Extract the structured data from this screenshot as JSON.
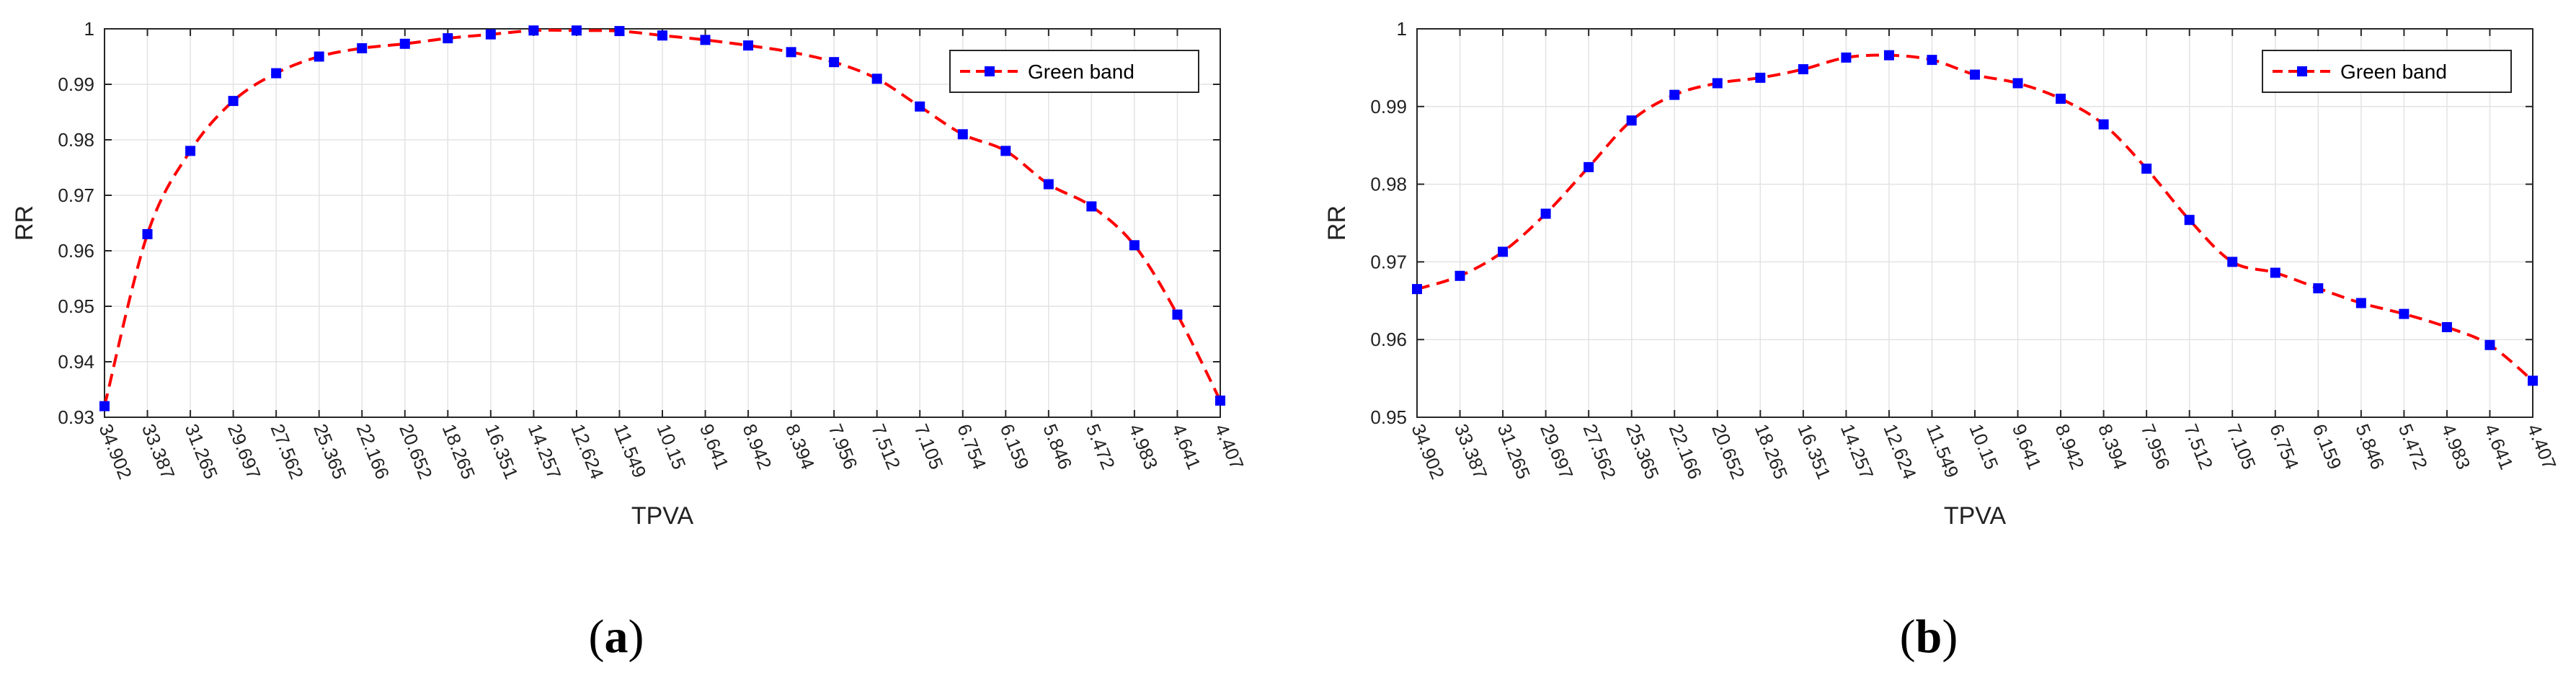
{
  "chart_data": [
    {
      "type": "line",
      "panel_label": "a",
      "xlabel": "TPVA",
      "ylabel": "RR",
      "ylim": [
        0.93,
        1.0
      ],
      "yticks": [
        0.93,
        0.94,
        0.95,
        0.96,
        0.97,
        0.98,
        0.99,
        1
      ],
      "ytick_labels": [
        "0.93",
        "0.94",
        "0.95",
        "0.96",
        "0.97",
        "0.98",
        "0.99",
        "1"
      ],
      "grid": true,
      "legend_position": "top-right",
      "categories": [
        "34.902",
        "33.387",
        "31.265",
        "29.697",
        "27.562",
        "25.365",
        "22.166",
        "20.652",
        "18.265",
        "16.351",
        "14.257",
        "12.624",
        "11.549",
        "10.15",
        "9.641",
        "8.942",
        "8.394",
        "7.956",
        "7.512",
        "7.105",
        "6.754",
        "6.159",
        "5.846",
        "5.472",
        "4.983",
        "4.641",
        "4.407"
      ],
      "series": [
        {
          "name": "Green band",
          "color": "#ff0000",
          "marker_color": "#0000ff",
          "values": [
            0.932,
            0.963,
            0.978,
            0.987,
            0.992,
            0.995,
            0.9965,
            0.9973,
            0.9983,
            0.999,
            0.9997,
            0.9997,
            0.9996,
            0.9988,
            0.998,
            0.997,
            0.9958,
            0.994,
            0.991,
            0.986,
            0.981,
            0.978,
            0.972,
            0.968,
            0.961,
            0.9485,
            0.933
          ]
        }
      ]
    },
    {
      "type": "line",
      "panel_label": "b",
      "xlabel": "TPVA",
      "ylabel": "RR",
      "ylim": [
        0.95,
        1.0
      ],
      "yticks": [
        0.95,
        0.96,
        0.97,
        0.98,
        0.99,
        1
      ],
      "ytick_labels": [
        "0.95",
        "0.96",
        "0.97",
        "0.98",
        "0.99",
        "1"
      ],
      "grid": true,
      "legend_position": "top-right",
      "categories": [
        "34.902",
        "33.387",
        "31.265",
        "29.697",
        "27.562",
        "25.365",
        "22.166",
        "20.652",
        "18.265",
        "16.351",
        "14.257",
        "12.624",
        "11.549",
        "10.15",
        "9.641",
        "8.942",
        "8.394",
        "7.956",
        "7.512",
        "7.105",
        "6.754",
        "6.159",
        "5.846",
        "5.472",
        "4.983",
        "4.641",
        "4.407"
      ],
      "series": [
        {
          "name": "Green band",
          "color": "#ff0000",
          "marker_color": "#0000ff",
          "values": [
            0.9665,
            0.9682,
            0.9713,
            0.9762,
            0.9822,
            0.9882,
            0.9915,
            0.993,
            0.9937,
            0.9948,
            0.9963,
            0.9966,
            0.996,
            0.9941,
            0.993,
            0.991,
            0.9877,
            0.982,
            0.9754,
            0.97,
            0.9686,
            0.9666,
            0.9647,
            0.9633,
            0.9616,
            0.9593,
            0.9547
          ]
        }
      ]
    }
  ]
}
